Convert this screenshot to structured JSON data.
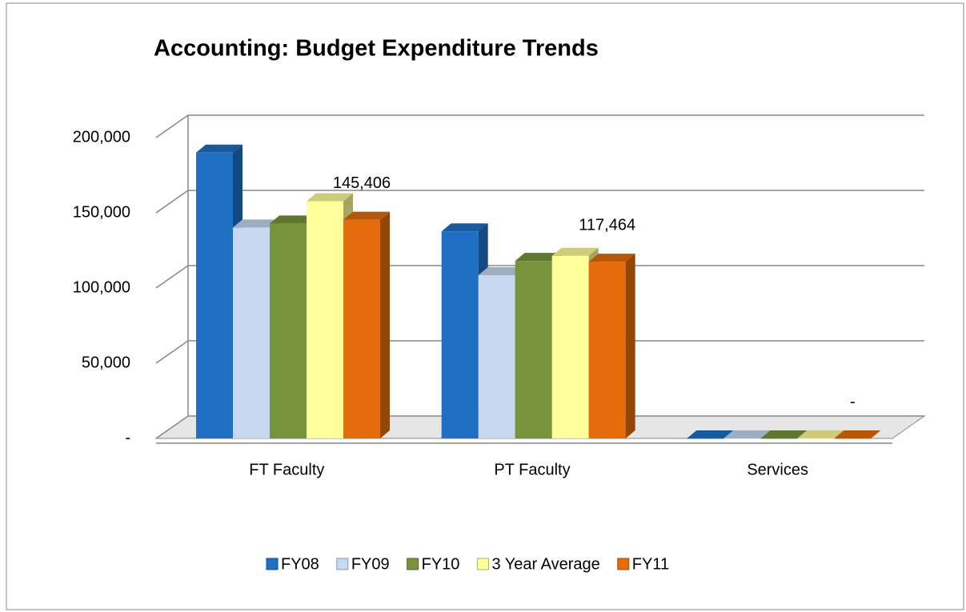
{
  "chart_data": {
    "type": "bar3d",
    "title": "Accounting: Budget Expenditure Trends",
    "categories": [
      "FT Faculty",
      "PT Faculty",
      "Services"
    ],
    "series": [
      {
        "name": "FY08",
        "color": "#1f6fc5",
        "values": [
          190000,
          137600,
          0
        ]
      },
      {
        "name": "FY09",
        "color": "#c6d9f1",
        "values": [
          140200,
          108500,
          0
        ]
      },
      {
        "name": "FY10",
        "color": "#77933c",
        "values": [
          142900,
          118000,
          0
        ]
      },
      {
        "name": "3 Year Average",
        "color": "#ffff99",
        "values": [
          157700,
          121400,
          0
        ]
      },
      {
        "name": "FY11",
        "color": "#e46c0a",
        "values": [
          145406,
          117464,
          0
        ],
        "value_labels": [
          "145,406",
          "117,464",
          "-"
        ]
      }
    ],
    "ylim": [
      0,
      200000
    ],
    "yticks": [
      {
        "value": 0,
        "label": "-"
      },
      {
        "value": 50000,
        "label": "50,000"
      },
      {
        "value": 100000,
        "label": "100,000"
      },
      {
        "value": 150000,
        "label": "150,000"
      },
      {
        "value": 200000,
        "label": "200,000"
      }
    ],
    "grid": true,
    "legend": "bottom"
  }
}
